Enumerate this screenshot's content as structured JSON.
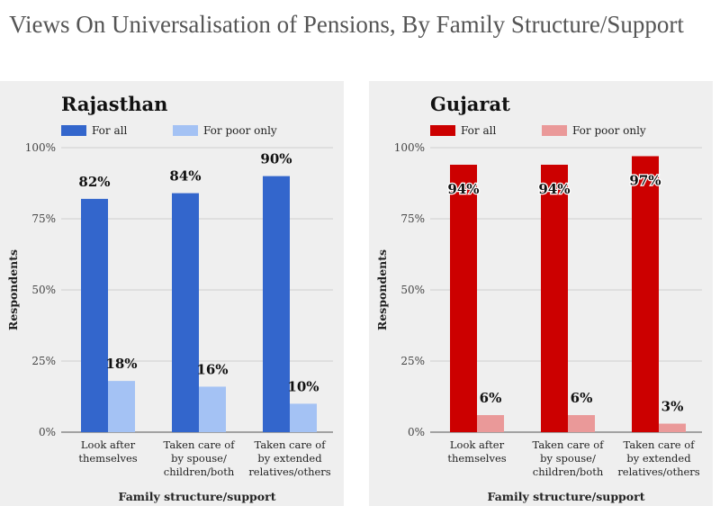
{
  "title": "Views On Universalisation of Pensions, By Family Structure/Support",
  "colors": {
    "panel_bg": "#efefef",
    "grid": "#cfcfcf"
  },
  "chart_data": [
    {
      "type": "bar",
      "title": "Rajasthan",
      "xlabel": "Family structure/support",
      "ylabel": "Respondents",
      "ylim": [
        0,
        100
      ],
      "yticks": [
        "0%",
        "25%",
        "50%",
        "75%",
        "100%"
      ],
      "categories": [
        [
          "Look after",
          "themselves"
        ],
        [
          "Taken care of",
          "by spouse/",
          "children/both"
        ],
        [
          "Taken care of",
          "by extended",
          "relatives/others"
        ]
      ],
      "series": [
        {
          "name": "For all",
          "color": "#3366cc",
          "values": [
            82,
            84,
            90
          ],
          "labels": [
            "82%",
            "84%",
            "90%"
          ]
        },
        {
          "name": "For poor only",
          "color": "#a4c2f4",
          "values": [
            18,
            16,
            10
          ],
          "labels": [
            "18%",
            "16%",
            "10%"
          ]
        }
      ]
    },
    {
      "type": "bar",
      "title": "Gujarat",
      "xlabel": "Family structure/support",
      "ylabel": "Respondents",
      "ylim": [
        0,
        100
      ],
      "yticks": [
        "0%",
        "25%",
        "50%",
        "75%",
        "100%"
      ],
      "categories": [
        [
          "Look after",
          "themselves"
        ],
        [
          "Taken care of",
          "by spouse/",
          "children/both"
        ],
        [
          "Taken care of",
          "by extended",
          "relatives/others"
        ]
      ],
      "series": [
        {
          "name": "For all",
          "color": "#cc0000",
          "values": [
            94,
            94,
            97
          ],
          "labels": [
            "94%",
            "94%",
            "97%"
          ]
        },
        {
          "name": "For poor only",
          "color": "#ea9999",
          "values": [
            6,
            6,
            3
          ],
          "labels": [
            "6%",
            "6%",
            "3%"
          ]
        }
      ]
    }
  ]
}
